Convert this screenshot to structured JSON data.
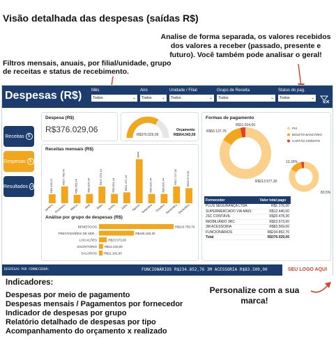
{
  "annotations": {
    "main_title": "Visão detalhada das despesas (saídas R$)",
    "right_note": "Analise de forma separada, os valores recebidos dos valores a receber (passado, presente e futuro). Você também pode analisar o geral!",
    "left_note": "Filtros mensais, anuais, por filial/unidade, grupo de receitas e status de recebimento.",
    "indicators_title": "Indicadores:",
    "indicators": [
      "Despesas por meio de pagamento",
      "Despesas mensais / Pagamentos por fornecedor",
      "Indicador de despesas por grupo",
      "Relatório detalhado de despesas por tipo",
      "Acompanhamento do orçamento x realizado"
    ],
    "personalize": "Personalize com a sua marca!"
  },
  "dashboard": {
    "title": "Despesas (R$)",
    "filters": [
      {
        "label": "Mês",
        "value": "Todos"
      },
      {
        "label": "Ano",
        "value": "Todos"
      },
      {
        "label": "Unidade / Filial",
        "value": "Todos"
      },
      {
        "label": "Grupo de Receita",
        "value": "Todos"
      },
      {
        "label": "Status do pag.",
        "value": "Todos"
      }
    ],
    "nav": [
      {
        "label": "Receitas",
        "icon": "$"
      },
      {
        "label": "Despesas",
        "icon": "$"
      },
      {
        "label": "Resultados",
        "icon": "↗"
      }
    ],
    "kpi": {
      "title": "Despesa (R$)",
      "value": "R$376.029,06"
    },
    "gauge": {
      "value_label": "R$376.029,06",
      "budget_label": "Orçamento",
      "budget_value": "R$564.043,59",
      "fraction": 0.667
    },
    "colors": {
      "header": "#1d3c6e",
      "accent": "#f2a61c",
      "light": "#fbd08a",
      "pale": "#fde6bd",
      "logo": "#e0412a"
    },
    "footer": {
      "label": "DESPESAS POR FORNECEDOR:",
      "ticker": "FUNCIONÁRIOS R$234.852,76     3M ACESSORIA R$83.509,00",
      "logo": "SEU LOGO AQUI"
    },
    "payment": {
      "title": "Formas de pagamento",
      "legend": [
        "PIX",
        "BOLETO BANCÁRIO",
        "CARTÃO CRÉDITO"
      ],
      "donut1_labels": [
        "R$11.914,00",
        "R$50.137,76",
        "R$313.977,30"
      ],
      "donut2_labels": [
        "13,33%",
        "83,5%"
      ]
    },
    "suppliers": {
      "headers": [
        "Fornecedor",
        "Valor total pago"
      ],
      "rows": [
        [
          "PLUS SEGURANÇA LTDA",
          "R$1.176,00"
        ],
        [
          "SUPERMERCADO VIA MAIS",
          "R$12.440,00"
        ],
        [
          "JSC CONTÁVIL",
          "R$20.478,30"
        ],
        [
          "IMOBILIÁRIO 3RC",
          "R$23.573,00"
        ],
        [
          "3M ACESSORIA",
          "R$83.509,00"
        ],
        [
          "FUNCIONÁRIOS",
          "R$234.852,76"
        ]
      ],
      "total_label": "Total",
      "total_value": "R$376.029,06"
    }
  },
  "chart_data": [
    {
      "type": "bar",
      "title": "Receitas mensais (R$)",
      "categories": [
        "Janeiro",
        "Fevereiro",
        "Março",
        "Abril",
        "Maio",
        "Junho",
        "Julho",
        "Agosto",
        "Setembro",
        "Outubro",
        "Novembro",
        "Dezembro"
      ],
      "values": [
        9469.22,
        17708.44,
        8955.44,
        9816.44,
        17576.44,
        9824.44,
        11472.44,
        46488.0,
        9816.44,
        9816.44,
        17727.0,
        15879.0
      ],
      "data_labels": [
        "R$9.469,22",
        "R$17.708,44",
        "R$8.955,44",
        "R$9.816,44",
        "R$17.576,44",
        "R$9.824,44",
        "R$11.472,44",
        "R$46.488,00",
        "R$9.816,44",
        "R$9.816,44",
        "R$17.727,00",
        "R$15.879,00"
      ],
      "ylim": [
        0,
        50000
      ]
    },
    {
      "type": "bar",
      "title": "Análise por grupo de despesas (R$)",
      "categories": [
        "BENEFÍCIOS",
        "PRESTADORES DE SER...",
        "LOCAÇÕES",
        "ESCRITÓRIO",
        "SALÁRIOS"
      ],
      "values": [
        223750.76,
        105163.3,
        23573.0,
        12440.0,
        11102.0
      ],
      "data_labels": [
        "R$223.750,76",
        "R$105.163,30",
        "R$23.573,00",
        "R$12.440,00",
        "R$11.102,00"
      ],
      "xlim": [
        0,
        230000
      ]
    },
    {
      "type": "pie",
      "title": "Formas de pagamento",
      "categories": [
        "PIX",
        "BOLETO BANCÁRIO",
        "CARTÃO CRÉDITO"
      ],
      "values": [
        313977.3,
        50137.76,
        11914.0
      ]
    },
    {
      "type": "pie",
      "title": "",
      "values": [
        83.5,
        13.33,
        3.17
      ]
    }
  ]
}
